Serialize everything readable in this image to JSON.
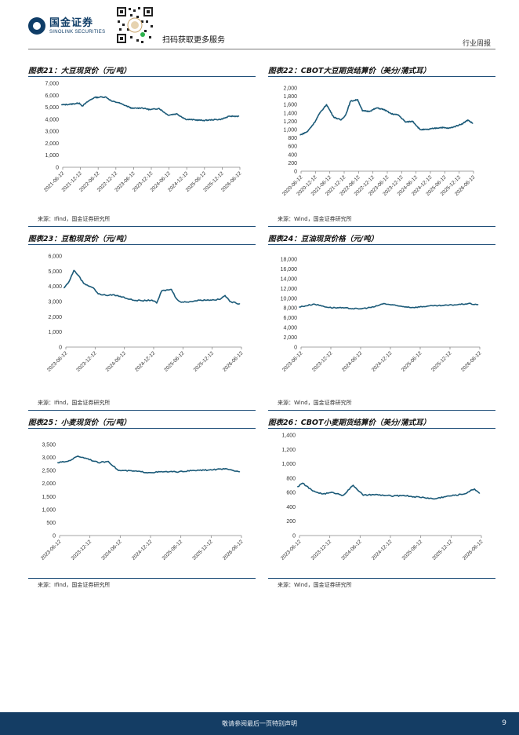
{
  "header": {
    "logo_cn": "国金证券",
    "logo_en": "SINOLINK SECURITIES",
    "qr_caption": "扫码获取更多服务",
    "report_type": "行业周报"
  },
  "footer": {
    "disclaimer": "敬请参阅最后一页特别声明",
    "page_number": "9"
  },
  "colors": {
    "series": "#1b5a78",
    "brand": "#0f3d67"
  },
  "panels": [
    {
      "title": "图表21：大豆现货价（元/吨）",
      "source": "来源：Ifind，国金证券研究所",
      "chart_data": {
        "type": "line",
        "ylim": [
          0,
          7000
        ],
        "yticks": [
          "0",
          "1,000",
          "2,000",
          "3,000",
          "4,000",
          "5,000",
          "6,000",
          "7,000"
        ],
        "ytick_values": [
          0,
          1000,
          2000,
          3000,
          4000,
          5000,
          6000,
          7000
        ],
        "xticks": [
          "2021-06-12",
          "2021-12-12",
          "2022-06-12",
          "2022-12-12",
          "2023-06-12",
          "2023-12-12",
          "2024-06-12",
          "2024-12-12",
          "2025-06-12",
          "2025-12-12",
          "2026-06-12"
        ],
        "x": [
          "2021-06",
          "2021-09",
          "2021-12",
          "2022-01",
          "2022-03",
          "2022-05",
          "2022-07",
          "2022-09",
          "2022-11",
          "2023-01",
          "2023-03",
          "2023-06",
          "2023-09",
          "2023-12",
          "2024-03",
          "2024-06",
          "2024-09",
          "2024-12",
          "2025-03",
          "2025-06",
          "2025-09",
          "2025-12",
          "2026-03",
          "2026-06"
        ],
        "values": [
          5200,
          5250,
          5350,
          5100,
          5500,
          5800,
          5850,
          5850,
          5500,
          5400,
          5200,
          4900,
          4950,
          4800,
          4900,
          4350,
          4450,
          4000,
          3950,
          3900,
          3950,
          4000,
          4250,
          4250
        ]
      }
    },
    {
      "title": "图表22：CBOT大豆期货结算价（美分/蒲式耳）",
      "source": "来源：Wind，国金证券研究所",
      "chart_data": {
        "type": "line",
        "ylim": [
          0,
          2000
        ],
        "yticks": [
          "0",
          "200",
          "400",
          "600",
          "800",
          "1,000",
          "1,200",
          "1,400",
          "1,600",
          "1,800",
          "2,000"
        ],
        "ytick_values": [
          0,
          200,
          400,
          600,
          800,
          1000,
          1200,
          1400,
          1600,
          1800,
          2000
        ],
        "xticks": [
          "2020-06-12",
          "2020-12-12",
          "2021-06-12",
          "2021-12-12",
          "2022-06-12",
          "2022-12-12",
          "2023-06-12",
          "2023-12-12",
          "2024-06-12",
          "2024-12-12",
          "2025-06-12",
          "2025-12-12",
          "2026-06-12"
        ],
        "x": [
          "2020-06",
          "2020-09",
          "2020-12",
          "2021-02",
          "2021-05",
          "2021-08",
          "2021-11",
          "2022-01",
          "2022-03",
          "2022-06",
          "2022-08",
          "2022-11",
          "2023-02",
          "2023-05",
          "2023-08",
          "2023-11",
          "2024-02",
          "2024-05",
          "2024-08",
          "2024-11",
          "2025-02",
          "2025-05",
          "2025-08",
          "2025-11",
          "2026-02",
          "2026-04",
          "2026-06"
        ],
        "values": [
          870,
          950,
          1170,
          1380,
          1600,
          1300,
          1230,
          1350,
          1680,
          1720,
          1450,
          1440,
          1520,
          1480,
          1380,
          1350,
          1180,
          1200,
          1000,
          1000,
          1030,
          1050,
          1030,
          1080,
          1150,
          1230,
          1150
        ]
      }
    },
    {
      "title": "图表23：豆粕现货价（元/吨）",
      "source": "来源：Ifind，国金证券研究所",
      "chart_data": {
        "type": "line",
        "ylim": [
          0,
          6000
        ],
        "yticks": [
          "0",
          "1,000",
          "2,000",
          "3,000",
          "4,000",
          "5,000",
          "6,000"
        ],
        "ytick_values": [
          0,
          1000,
          2000,
          3000,
          4000,
          5000,
          6000
        ],
        "xticks": [
          "2023-06-12",
          "2023-12-12",
          "2024-06-12",
          "2024-12-12",
          "2025-06-12",
          "2025-12-12",
          "2026-06-12"
        ],
        "x": [
          "2023-06",
          "2023-07",
          "2023-08",
          "2023-09",
          "2023-10",
          "2023-12",
          "2024-01",
          "2024-03",
          "2024-04",
          "2024-06",
          "2024-08",
          "2024-10",
          "2024-12",
          "2025-01",
          "2025-02",
          "2025-04",
          "2025-05",
          "2025-06",
          "2025-08",
          "2025-10",
          "2025-12",
          "2026-02",
          "2026-03",
          "2026-04",
          "2026-06"
        ],
        "values": [
          3900,
          4300,
          5050,
          4700,
          4200,
          3900,
          3500,
          3400,
          3450,
          3300,
          3100,
          3050,
          3100,
          2900,
          3700,
          3800,
          3200,
          2950,
          3000,
          3100,
          3100,
          3150,
          3400,
          3000,
          2850
        ]
      }
    },
    {
      "title": "图表24：豆油现货价格（元/吨）",
      "source": "来源：Wind，国金证券研究所",
      "chart_data": {
        "type": "line",
        "ylim": [
          0,
          18000
        ],
        "yticks": [
          "0",
          "2,000",
          "4,000",
          "6,000",
          "8,000",
          "10,000",
          "12,000",
          "14,000",
          "16,000",
          "18,000"
        ],
        "ytick_values": [
          0,
          2000,
          4000,
          6000,
          8000,
          10000,
          12000,
          14000,
          16000,
          18000
        ],
        "xticks": [
          "2023-06-12",
          "2023-12-12",
          "2024-06-12",
          "2024-12-12",
          "2025-06-12",
          "2025-12-12",
          "2026-06-12"
        ],
        "x": [
          "2023-06",
          "2023-09",
          "2023-12",
          "2024-03",
          "2024-06",
          "2024-09",
          "2024-11",
          "2025-02",
          "2025-05",
          "2025-08",
          "2025-11",
          "2026-02",
          "2026-04",
          "2026-06"
        ],
        "values": [
          8200,
          8800,
          8100,
          8000,
          7800,
          8200,
          8900,
          8400,
          8100,
          8400,
          8500,
          8700,
          8900,
          8700
        ]
      }
    },
    {
      "title": "图表25：小麦现货价（元/吨）",
      "source": "来源：Ifind，国金证券研究所",
      "chart_data": {
        "type": "line",
        "ylim": [
          0,
          3500
        ],
        "yticks": [
          "0",
          "500",
          "1,000",
          "1,500",
          "2,000",
          "2,500",
          "3,000",
          "3,500"
        ],
        "ytick_values": [
          0,
          500,
          1000,
          1500,
          2000,
          2500,
          3000,
          3500
        ],
        "xticks": [
          "2023-06-12",
          "2023-12-12",
          "2024-06-12",
          "2024-12-12",
          "2025-06-12",
          "2025-12-12",
          "2026-06-12"
        ],
        "x": [
          "2023-06",
          "2023-08",
          "2023-10",
          "2023-12",
          "2024-02",
          "2024-04",
          "2024-06",
          "2024-09",
          "2024-12",
          "2025-03",
          "2025-06",
          "2025-09",
          "2025-12",
          "2026-03",
          "2026-06"
        ],
        "values": [
          2800,
          2850,
          3050,
          2950,
          2800,
          2850,
          2500,
          2480,
          2420,
          2450,
          2450,
          2500,
          2520,
          2560,
          2450
        ]
      }
    },
    {
      "title": "图表26：CBOT小麦期货结算价（美分/蒲式耳）",
      "source": "来源：Wind，国金证券研究所",
      "chart_data": {
        "type": "line",
        "ylim": [
          0,
          1400
        ],
        "yticks": [
          "0",
          "200",
          "400",
          "600",
          "800",
          "1,000",
          "1,200",
          "1,400"
        ],
        "ytick_values": [
          0,
          200,
          400,
          600,
          800,
          1000,
          1200,
          1400
        ],
        "xticks": [
          "2023-06-12",
          "2023-12-12",
          "2024-06-12",
          "2024-12-12",
          "2025-06-12",
          "2025-12-12",
          "2026-06-12"
        ],
        "x": [
          "2023-06",
          "2023-07",
          "2023-09",
          "2023-11",
          "2024-01",
          "2024-03",
          "2024-05",
          "2024-07",
          "2024-09",
          "2024-11",
          "2025-01",
          "2025-03",
          "2025-05",
          "2025-07",
          "2025-09",
          "2025-11",
          "2026-01",
          "2026-03",
          "2026-05",
          "2026-06"
        ],
        "values": [
          680,
          730,
          620,
          580,
          600,
          560,
          700,
          560,
          570,
          560,
          550,
          560,
          540,
          530,
          510,
          540,
          560,
          580,
          650,
          590
        ]
      }
    }
  ]
}
